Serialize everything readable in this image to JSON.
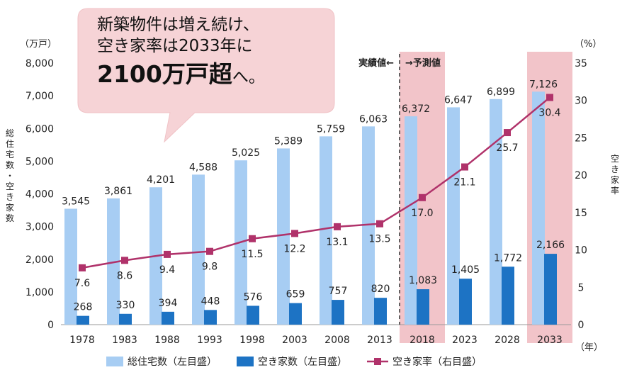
{
  "callout": {
    "line1": "新築物件は増え続け、",
    "line2a": "空き家率",
    "line2b": "は2033年に",
    "line3a": "2100万戸超",
    "line3b": "へ。"
  },
  "colors": {
    "total": "#a7cdf3",
    "vacant": "#1d73c4",
    "rate": "#b0326a",
    "highlight": "#f2c4c9",
    "callout_fill": "#f6d3d6"
  },
  "chart_data": {
    "type": "bar",
    "categories": [
      "1978",
      "1983",
      "1988",
      "1993",
      "1998",
      "2003",
      "2008",
      "2013",
      "2018",
      "2023",
      "2028",
      "2033"
    ],
    "series": [
      {
        "name": "総住宅数（左目盛）",
        "axis": "left",
        "values": [
          3545,
          3861,
          4201,
          4588,
          5025,
          5389,
          5759,
          6063,
          6372,
          6647,
          6899,
          7126
        ],
        "labels": [
          "3,545",
          "3,861",
          "4,201",
          "4,588",
          "5,025",
          "5,389",
          "5,759",
          "6,063",
          "6,372",
          "6,647",
          "6,899",
          "7,126"
        ]
      },
      {
        "name": "空き家数（左目盛）",
        "axis": "left",
        "values": [
          268,
          330,
          394,
          448,
          576,
          659,
          757,
          820,
          1083,
          1405,
          1772,
          2166
        ],
        "labels": [
          "268",
          "330",
          "394",
          "448",
          "576",
          "659",
          "757",
          "820",
          "1,083",
          "1,405",
          "1,772",
          "2,166"
        ]
      },
      {
        "name": "空き家率（右目盛）",
        "axis": "right",
        "type": "line",
        "values": [
          7.6,
          8.6,
          9.4,
          9.8,
          11.5,
          12.2,
          13.1,
          13.5,
          17.0,
          21.1,
          25.7,
          30.4
        ],
        "labels": [
          "7.6",
          "8.6",
          "9.4",
          "9.8",
          "11.5",
          "12.2",
          "13.1",
          "13.5",
          "17.0",
          "21.1",
          "25.7",
          "30.4"
        ]
      }
    ],
    "y_left": {
      "unit": "（万戸）",
      "label": "総住宅数・空き家数",
      "range": [
        0,
        8000
      ],
      "ticks": [
        "0",
        "1,000",
        "2,000",
        "3,000",
        "4,000",
        "5,000",
        "6,000",
        "7,000",
        "8,000"
      ]
    },
    "y_right": {
      "unit": "（%）",
      "label": "空き家率",
      "range": [
        0,
        35
      ],
      "ticks": [
        "0",
        "5",
        "10",
        "15",
        "20",
        "25",
        "30",
        "35"
      ]
    },
    "x_unit": "（年）",
    "annotations": {
      "actual": "実績値←",
      "forecast": "→予測値"
    },
    "highlighted_categories": [
      "2018",
      "2033"
    ],
    "legend_placement": "bottom"
  }
}
